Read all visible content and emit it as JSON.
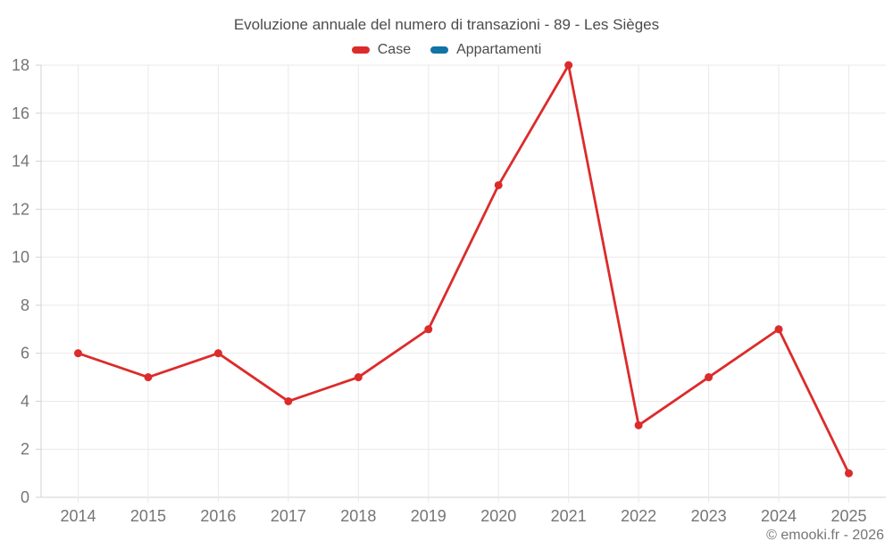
{
  "footer": "© emooki.fr - 2026",
  "chart_data": {
    "type": "line",
    "title": "Evoluzione annuale del numero di transazioni - 89 - Les Sièges",
    "categories": [
      "2014",
      "2015",
      "2016",
      "2017",
      "2018",
      "2019",
      "2020",
      "2021",
      "2022",
      "2023",
      "2024",
      "2025"
    ],
    "series": [
      {
        "name": "Case",
        "color": "#dc2b2b",
        "values": [
          6,
          5,
          6,
          4,
          5,
          7,
          13,
          18,
          3,
          5,
          7,
          1
        ]
      },
      {
        "name": "Appartamenti",
        "color": "#1273a7",
        "values": []
      }
    ],
    "xlabel": "",
    "ylabel": "",
    "ylim": [
      0,
      18
    ],
    "y_ticks": [
      0,
      2,
      4,
      6,
      8,
      10,
      12,
      14,
      16,
      18
    ],
    "grid": true,
    "legend_position": "top",
    "colors": {
      "grid_line": "#e9e9e9",
      "axis_line": "#d2d2d2",
      "tick_label": "#757575",
      "title_text": "#4c4c4c"
    }
  }
}
